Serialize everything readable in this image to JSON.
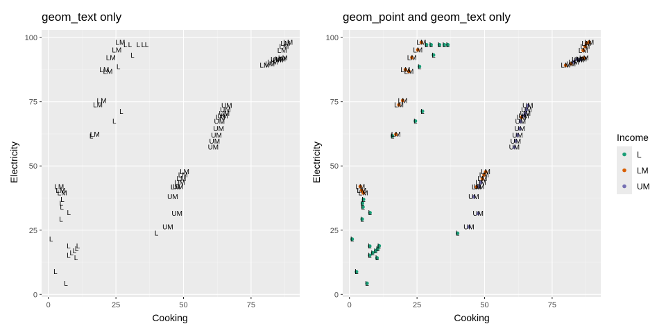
{
  "chart_data": [
    {
      "type": "scatter",
      "title": "geom_text only",
      "xlabel": "Cooking",
      "ylabel": "Electricity",
      "xlim": [
        -2.5,
        93
      ],
      "ylim": [
        -1,
        103
      ],
      "x_ticks": [
        0,
        25,
        50,
        75
      ],
      "y_ticks": [
        0,
        25,
        50,
        75,
        100
      ],
      "grid": true,
      "show_points": false,
      "points": [
        {
          "x": 1.0,
          "y": 21.5,
          "label": "L"
        },
        {
          "x": 2.6,
          "y": 8.8,
          "label": "L"
        },
        {
          "x": 6.5,
          "y": 4.3,
          "label": "L"
        },
        {
          "x": 4.7,
          "y": 29.3,
          "label": "L"
        },
        {
          "x": 7.6,
          "y": 31.8,
          "label": "L"
        },
        {
          "x": 5.0,
          "y": 34.0,
          "label": "L"
        },
        {
          "x": 4.8,
          "y": 35.5,
          "label": "L"
        },
        {
          "x": 5.2,
          "y": 37.0,
          "label": "L"
        },
        {
          "x": 7.5,
          "y": 18.8,
          "label": "L"
        },
        {
          "x": 11.0,
          "y": 18.9,
          "label": "L"
        },
        {
          "x": 10.5,
          "y": 17.8,
          "label": "L"
        },
        {
          "x": 9.7,
          "y": 17.0,
          "label": "L"
        },
        {
          "x": 8.6,
          "y": 16.2,
          "label": "L"
        },
        {
          "x": 7.5,
          "y": 15.2,
          "label": "L"
        },
        {
          "x": 10.2,
          "y": 14.2,
          "label": "L"
        },
        {
          "x": 4.0,
          "y": 42.0,
          "label": "LM"
        },
        {
          "x": 4.5,
          "y": 40.5,
          "label": "LM"
        },
        {
          "x": 5.1,
          "y": 39.5,
          "label": "LM"
        },
        {
          "x": 15.9,
          "y": 61.7,
          "label": "L"
        },
        {
          "x": 17.2,
          "y": 62.3,
          "label": "LM"
        },
        {
          "x": 18.3,
          "y": 73.8,
          "label": "LM"
        },
        {
          "x": 19.7,
          "y": 75.5,
          "label": "LM"
        },
        {
          "x": 24.4,
          "y": 67.5,
          "label": "L"
        },
        {
          "x": 27.0,
          "y": 71.3,
          "label": "L"
        },
        {
          "x": 20.7,
          "y": 87.5,
          "label": "LM"
        },
        {
          "x": 22.0,
          "y": 86.8,
          "label": "LM"
        },
        {
          "x": 25.9,
          "y": 88.7,
          "label": "L"
        },
        {
          "x": 23.1,
          "y": 92.2,
          "label": "LM"
        },
        {
          "x": 25.3,
          "y": 95.2,
          "label": "LM"
        },
        {
          "x": 26.6,
          "y": 98.1,
          "label": "LM"
        },
        {
          "x": 28.5,
          "y": 97.2,
          "label": "L"
        },
        {
          "x": 30.2,
          "y": 97.2,
          "label": "L"
        },
        {
          "x": 31.1,
          "y": 93.2,
          "label": "L"
        },
        {
          "x": 33.3,
          "y": 97.2,
          "label": "L"
        },
        {
          "x": 35.1,
          "y": 97.2,
          "label": "L"
        },
        {
          "x": 36.4,
          "y": 97.2,
          "label": "L"
        },
        {
          "x": 40.0,
          "y": 23.8,
          "label": "L"
        },
        {
          "x": 44.2,
          "y": 26.3,
          "label": "UM"
        },
        {
          "x": 47.6,
          "y": 31.5,
          "label": "UM"
        },
        {
          "x": 46.0,
          "y": 38.0,
          "label": "UM"
        },
        {
          "x": 47.0,
          "y": 41.8,
          "label": "LM"
        },
        {
          "x": 48.0,
          "y": 42.0,
          "label": "UM"
        },
        {
          "x": 48.6,
          "y": 43.6,
          "label": "UM"
        },
        {
          "x": 49.2,
          "y": 45.0,
          "label": "LM"
        },
        {
          "x": 49.8,
          "y": 46.5,
          "label": "LM"
        },
        {
          "x": 50.4,
          "y": 47.7,
          "label": "LM"
        },
        {
          "x": 61.0,
          "y": 57.3,
          "label": "UM"
        },
        {
          "x": 61.5,
          "y": 59.7,
          "label": "UM"
        },
        {
          "x": 62.2,
          "y": 62.0,
          "label": "UM"
        },
        {
          "x": 63.0,
          "y": 64.5,
          "label": "UM"
        },
        {
          "x": 63.3,
          "y": 67.3,
          "label": "UM"
        },
        {
          "x": 63.7,
          "y": 69.0,
          "label": "LM"
        },
        {
          "x": 64.5,
          "y": 69.5,
          "label": "UM"
        },
        {
          "x": 65.1,
          "y": 70.5,
          "label": "UM"
        },
        {
          "x": 65.5,
          "y": 72.0,
          "label": "UM"
        },
        {
          "x": 66.0,
          "y": 73.5,
          "label": "UM"
        },
        {
          "x": 80.0,
          "y": 89.2,
          "label": "LM"
        },
        {
          "x": 82.0,
          "y": 89.8,
          "label": "LM"
        },
        {
          "x": 83.0,
          "y": 90.5,
          "label": "UM"
        },
        {
          "x": 84.2,
          "y": 91.5,
          "label": "UM"
        },
        {
          "x": 85.0,
          "y": 91.3,
          "label": "UM"
        },
        {
          "x": 85.9,
          "y": 91.7,
          "label": "UM"
        },
        {
          "x": 86.8,
          "y": 92.0,
          "label": "LM"
        },
        {
          "x": 86.5,
          "y": 95.0,
          "label": "LM"
        },
        {
          "x": 87.2,
          "y": 96.5,
          "label": "LM"
        },
        {
          "x": 87.7,
          "y": 97.8,
          "label": "LM"
        },
        {
          "x": 88.7,
          "y": 98.2,
          "label": "LM"
        }
      ]
    },
    {
      "type": "scatter",
      "title": "geom_point and geom_text only",
      "xlabel": "Cooking",
      "ylabel": "Electricity",
      "xlim": [
        -2.5,
        93
      ],
      "ylim": [
        -1,
        103
      ],
      "x_ticks": [
        0,
        25,
        50,
        75
      ],
      "y_ticks": [
        0,
        25,
        50,
        75,
        100
      ],
      "grid": true,
      "show_points": true,
      "legend_position": "right"
    }
  ],
  "legend": {
    "title": "Income",
    "entries": [
      {
        "label": "L",
        "color": "#1B9E77"
      },
      {
        "label": "LM",
        "color": "#D95F02"
      },
      {
        "label": "UM",
        "color": "#7570B3"
      }
    ]
  },
  "colors": {
    "panel_bg": "#EBEBEB",
    "grid_major": "#FFFFFF",
    "axis_text": "#4D4D4D",
    "text": "#000000",
    "L": "#1B9E77",
    "LM": "#D95F02",
    "UM": "#7570B3"
  }
}
